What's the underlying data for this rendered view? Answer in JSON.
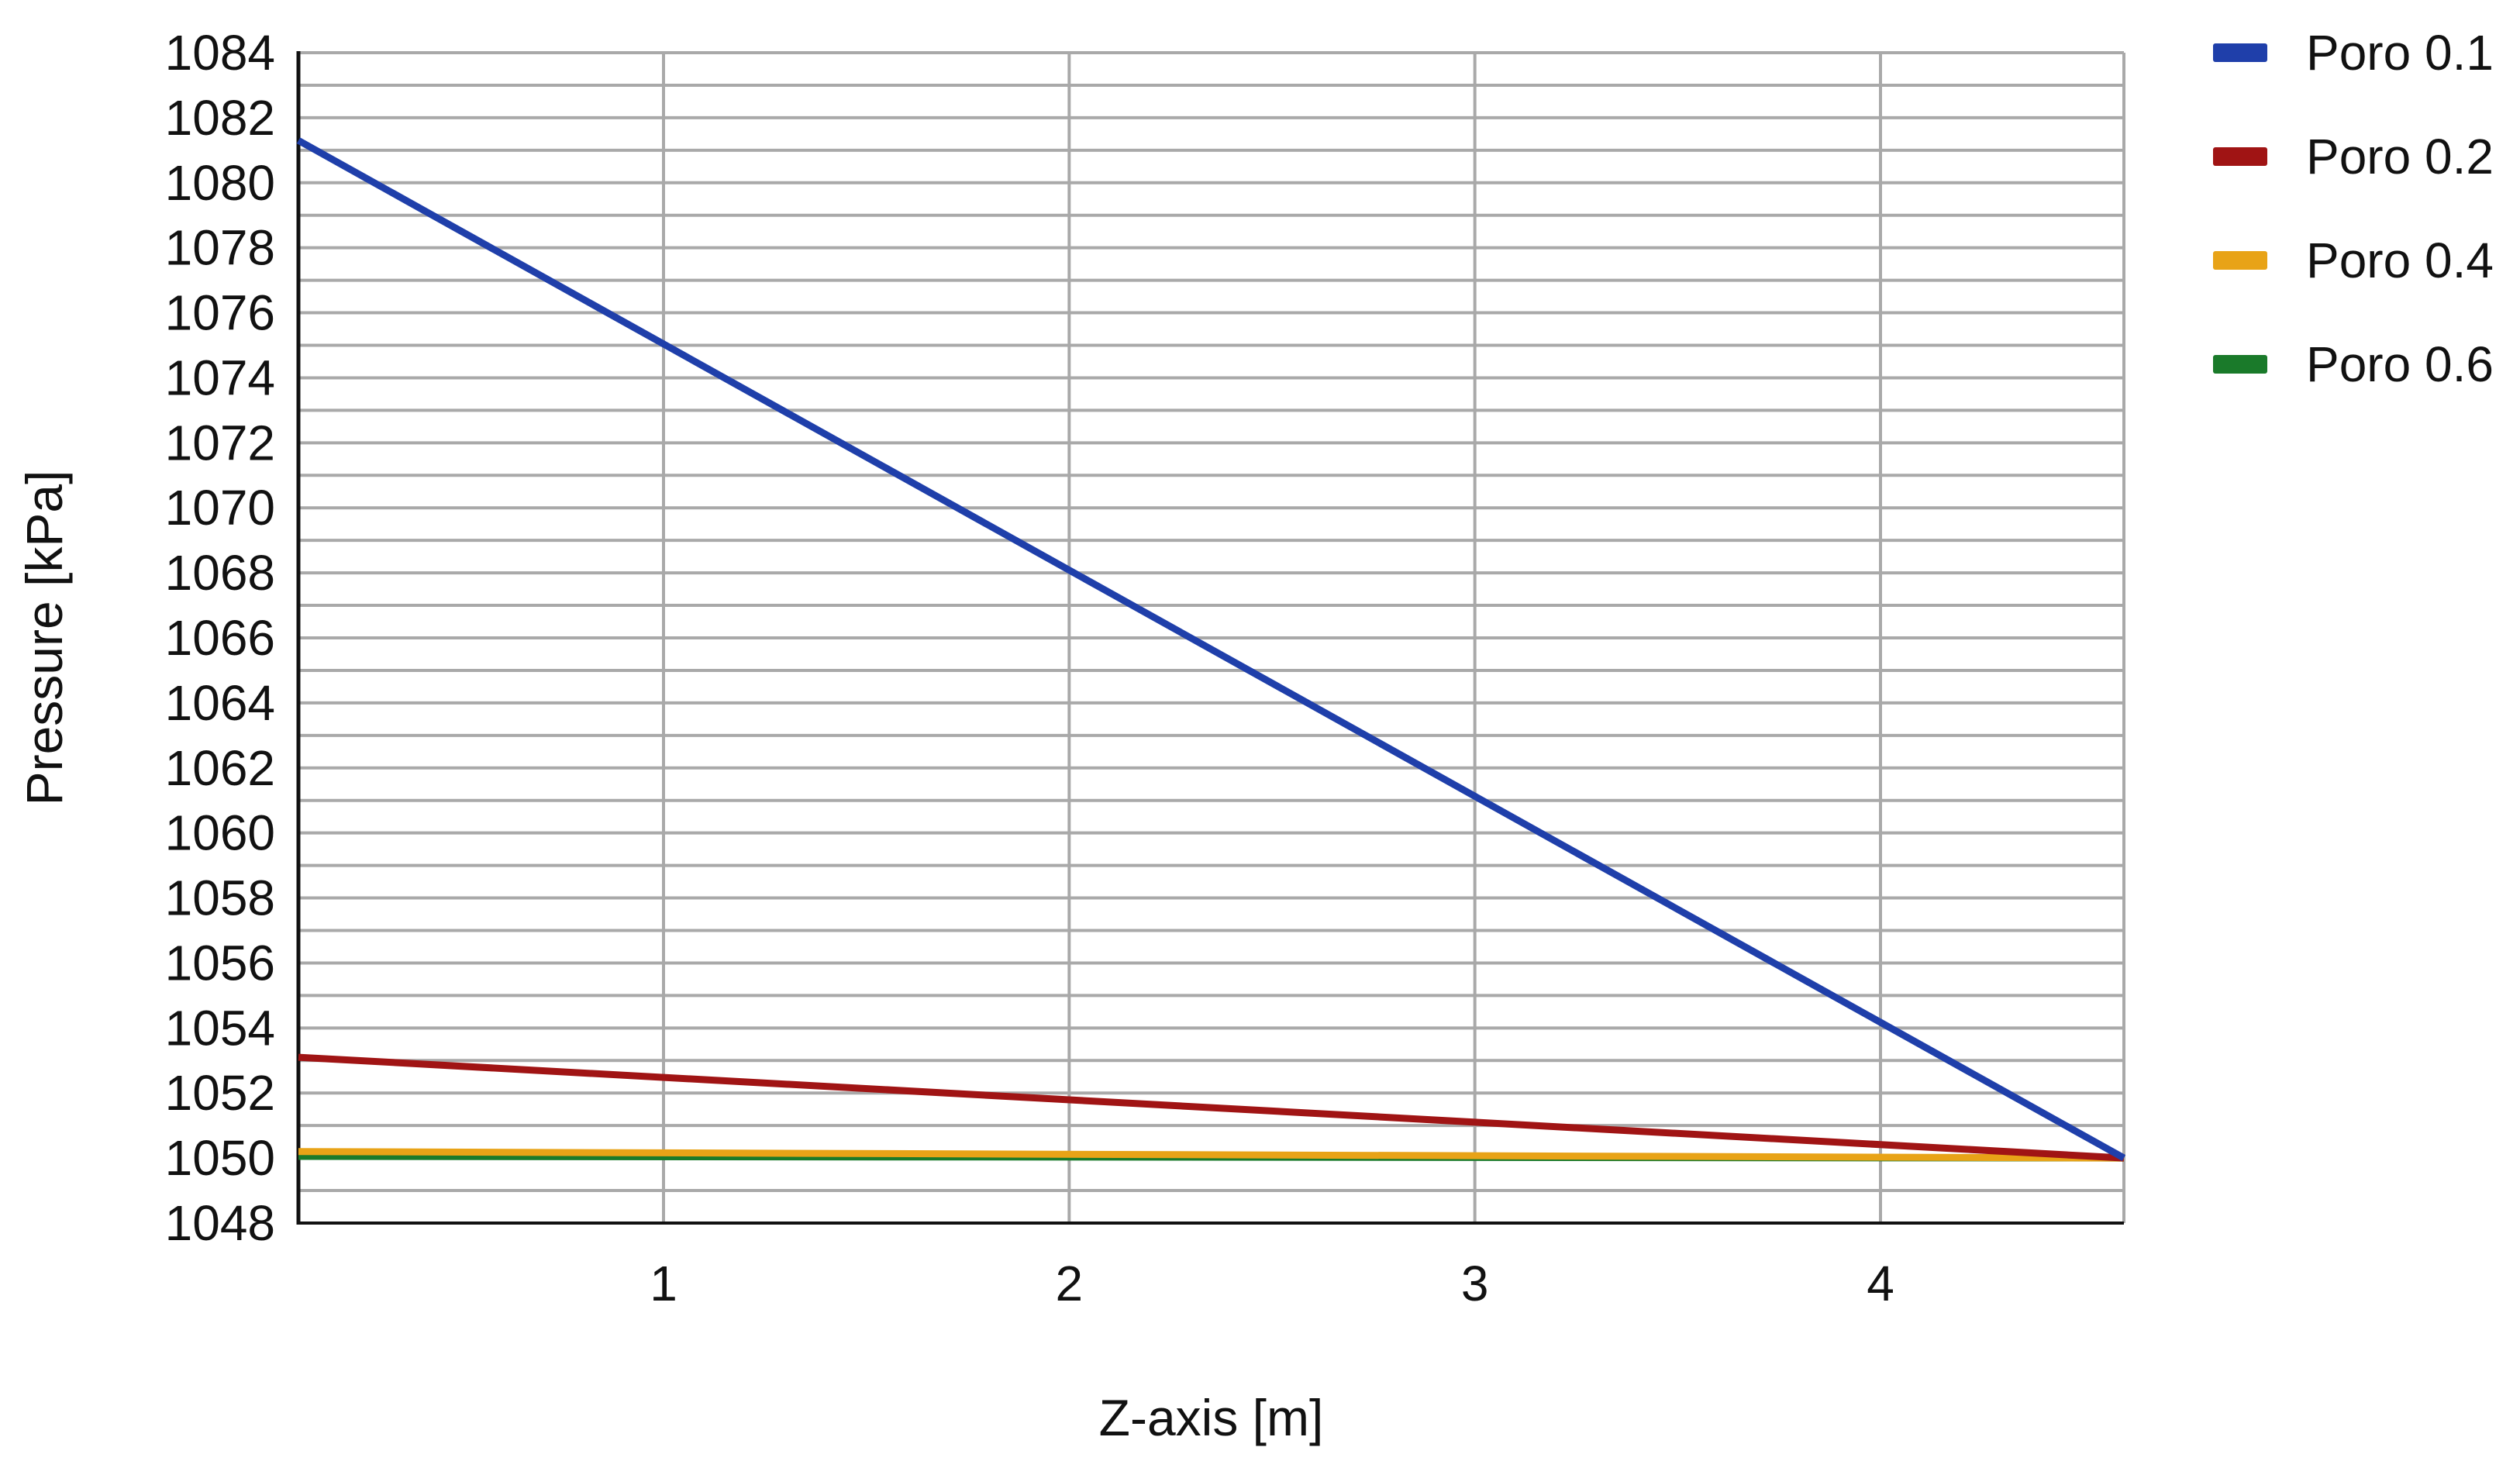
{
  "chart_data": {
    "type": "line",
    "title": "",
    "xlabel": "Z-axis [m]",
    "ylabel": "Pressure [kPa]",
    "xlim": [
      0.1,
      4.6
    ],
    "ylim": [
      1048,
      1084
    ],
    "xticks": [
      1,
      2,
      3,
      4
    ],
    "yticks": [
      1048,
      1050,
      1052,
      1054,
      1056,
      1058,
      1060,
      1062,
      1064,
      1066,
      1068,
      1070,
      1072,
      1074,
      1076,
      1078,
      1080,
      1082,
      1084
    ],
    "grid": true,
    "minor_grid_y": true,
    "legend_position": "right",
    "series": [
      {
        "name": "Poro 0.1",
        "color": "#1f3faa",
        "x": [
          0.1,
          4.6
        ],
        "y": [
          1081.3,
          1050.0
        ]
      },
      {
        "name": "Poro 0.2",
        "color": "#a01414",
        "x": [
          0.1,
          4.6
        ],
        "y": [
          1053.1,
          1050.0
        ]
      },
      {
        "name": "Poro 0.4",
        "color": "#e8a317",
        "x": [
          0.1,
          4.6
        ],
        "y": [
          1050.2,
          1050.0
        ]
      },
      {
        "name": "Poro 0.6",
        "color": "#1a7a2a",
        "x": [
          0.1,
          4.6
        ],
        "y": [
          1050.05,
          1050.0
        ]
      }
    ]
  }
}
